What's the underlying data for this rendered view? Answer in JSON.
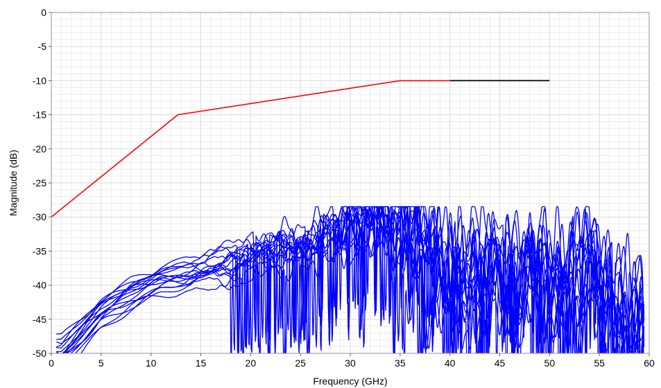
{
  "chart_data": {
    "type": "line",
    "title": "",
    "xlabel": "Frequency (GHz)",
    "ylabel": "Magnitude (dB)",
    "xlim": [
      0,
      60
    ],
    "ylim": [
      -50,
      0
    ],
    "x_ticks": [
      0,
      5,
      10,
      15,
      20,
      25,
      30,
      35,
      40,
      45,
      50,
      55,
      60
    ],
    "y_ticks": [
      0,
      -5,
      -10,
      -15,
      -20,
      -25,
      -30,
      -35,
      -40,
      -45,
      -50
    ],
    "x_tick_labels": [
      "0",
      "5",
      "10",
      "15",
      "20",
      "25",
      "30",
      "35",
      "40",
      "45",
      "50",
      "55",
      "60"
    ],
    "y_tick_labels": [
      "0",
      "-5",
      "-10",
      "-15",
      "-20",
      "-25",
      "-30",
      "-35",
      "-40",
      "-45",
      "-50"
    ],
    "grid": true,
    "minor_grid": true,
    "colors": {
      "mask": "#ff0000",
      "mask_extension": "#000000",
      "traces": "#0000ff",
      "grid": "#d9d9d9",
      "background": "#ffffff"
    },
    "mask": {
      "x": [
        0,
        12.7,
        35,
        40
      ],
      "y": [
        -30,
        -15,
        -10,
        -10
      ]
    },
    "mask_extension": {
      "x": [
        40,
        50
      ],
      "y": [
        -10,
        -10
      ]
    },
    "traces": {
      "count": 16,
      "x_range": [
        0.5,
        59.5
      ],
      "y_clip": -50,
      "envelope": {
        "x": [
          1,
          3,
          5,
          8,
          11,
          14,
          18,
          22,
          25,
          28,
          30,
          33,
          35,
          40,
          45,
          50,
          55,
          59
        ],
        "y": [
          -50,
          -47,
          -44,
          -41,
          -39,
          -38,
          -37,
          -35,
          -34,
          -32,
          -31,
          -31,
          -33,
          -38,
          -39,
          -40,
          -40,
          -46
        ]
      },
      "peaks": [
        {
          "x": 27.8,
          "y": -28.8
        },
        {
          "x": 32.4,
          "y": -28.6
        },
        {
          "x": 44.7,
          "y": -28.9
        },
        {
          "x": 54.1,
          "y": -30.8
        },
        {
          "x": 40.6,
          "y": -31.0
        },
        {
          "x": 37.6,
          "y": -31.5
        }
      ]
    }
  }
}
